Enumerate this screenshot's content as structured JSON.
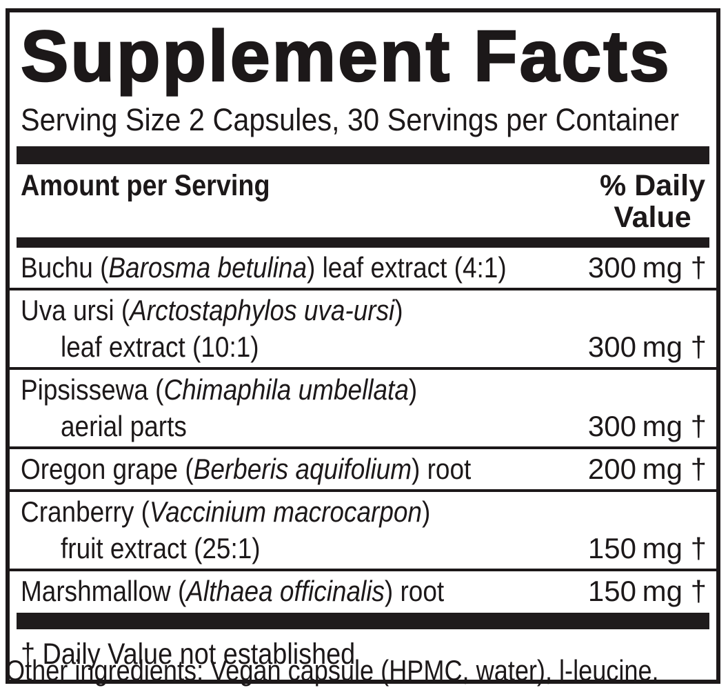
{
  "label": {
    "title": "Supplement Facts",
    "serving_info": "Serving Size 2 Capsules, 30 Servings per Container",
    "header": {
      "amount_col": "Amount per Serving",
      "dv_col_line1": "% Daily",
      "dv_col_line2": "Value"
    },
    "rows": [
      {
        "pre": "Buchu (",
        "latin": "Barosma betulina",
        "post": ") leaf extract (4:1)",
        "line2": "",
        "amount": "300",
        "unit": "mg †"
      },
      {
        "pre": "Uva ursi (",
        "latin": "Arctostaphylos uva-ursi",
        "post": ")",
        "line2": "leaf extract (10:1)",
        "amount": "300",
        "unit": "mg †"
      },
      {
        "pre": "Pipsissewa (",
        "latin": "Chimaphila umbellata",
        "post": ")",
        "line2": "aerial parts",
        "amount": "300",
        "unit": "mg †"
      },
      {
        "pre": "Oregon grape (",
        "latin": "Berberis aquifolium",
        "post": ") root",
        "line2": "",
        "amount": "200",
        "unit": "mg †"
      },
      {
        "pre": "Cranberry (",
        "latin": "Vaccinium macrocarpon",
        "post": ")",
        "line2": "fruit extract (25:1)",
        "amount": "150",
        "unit": "mg †"
      },
      {
        "pre": "Marshmallow (",
        "latin": "Althaea officinalis",
        "post": ") root",
        "line2": "",
        "amount": "150",
        "unit": "mg †"
      }
    ],
    "footnote": "† Daily Value not established",
    "other_ingredients": "Other ingredients: Vegan capsule (HPMC, water), l-leucine.",
    "colors": {
      "text": "#1c1819",
      "bar": "#1f1b1c",
      "background": "#ffffff"
    }
  }
}
